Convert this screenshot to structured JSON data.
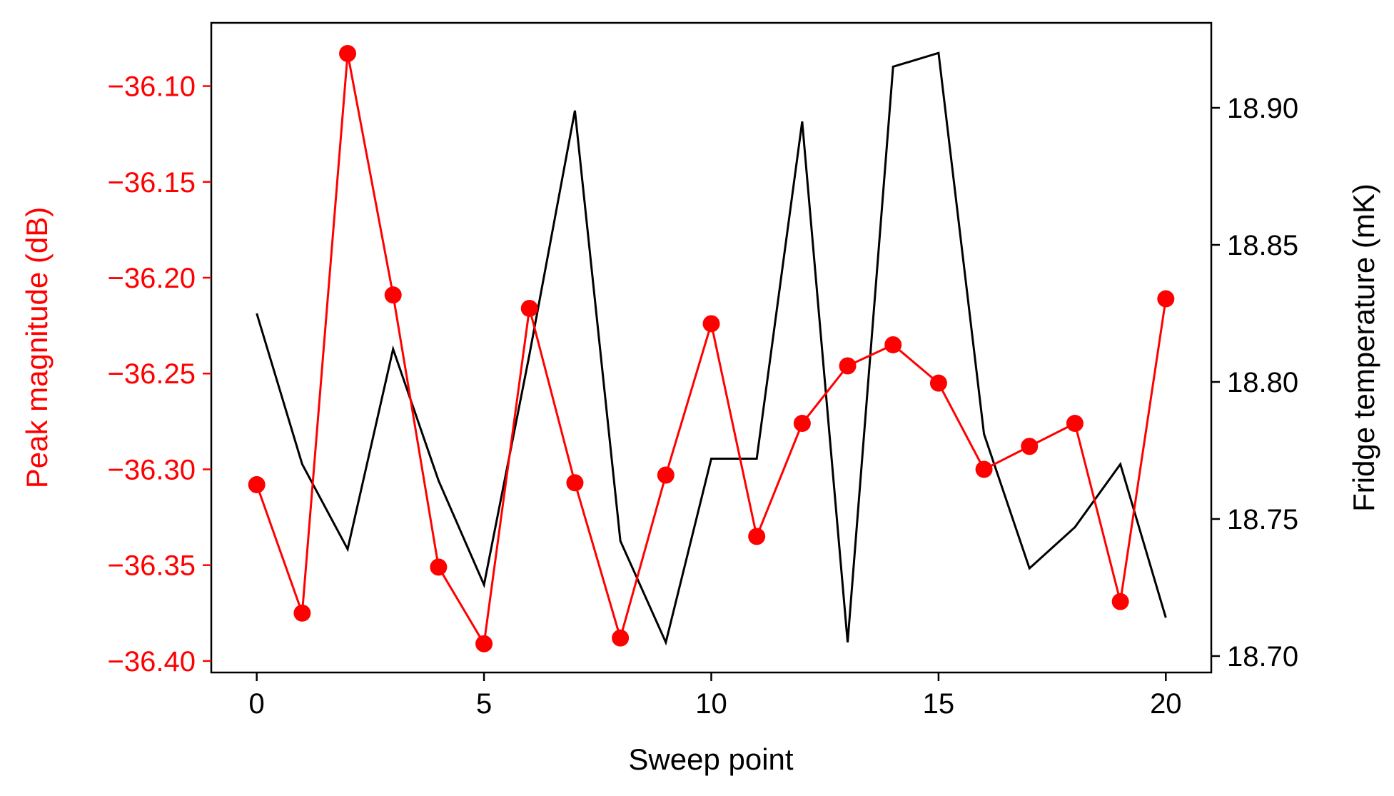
{
  "chart_data": {
    "type": "line",
    "xlabel": "Sweep point",
    "ylabel_left": "Peak magnitude (dB)",
    "ylabel_right": "Fridge temperature (mK)",
    "xlim": [
      -1,
      21
    ],
    "ylim_left": [
      -36.406,
      -36.067
    ],
    "ylim_right": [
      18.694,
      18.931
    ],
    "x_ticks": [
      0,
      5,
      10,
      15,
      20
    ],
    "x_tick_labels": [
      "0",
      "5",
      "10",
      "15",
      "20"
    ],
    "y_left_ticks": [
      -36.1,
      -36.15,
      -36.2,
      -36.25,
      -36.3,
      -36.35,
      -36.4
    ],
    "y_left_tick_labels": [
      "−36.10",
      "−36.15",
      "−36.20",
      "−36.25",
      "−36.30",
      "−36.35",
      "−36.40"
    ],
    "y_right_ticks": [
      18.7,
      18.75,
      18.8,
      18.85,
      18.9
    ],
    "y_right_tick_labels": [
      "18.70",
      "18.75",
      "18.80",
      "18.85",
      "18.90"
    ],
    "grid": false,
    "x": [
      0,
      1,
      2,
      3,
      4,
      5,
      6,
      7,
      8,
      9,
      10,
      11,
      12,
      13,
      14,
      15,
      16,
      17,
      18,
      19,
      20
    ],
    "series": [
      {
        "axis": "left",
        "color": "#ff0000",
        "marker": "circle",
        "values": [
          -36.308,
          -36.375,
          -36.083,
          -36.209,
          -36.351,
          -36.391,
          -36.216,
          -36.307,
          -36.388,
          -36.303,
          -36.224,
          -36.335,
          -36.276,
          -36.246,
          -36.235,
          -36.255,
          -36.3,
          -36.288,
          -36.276,
          -36.369,
          -36.211
        ]
      },
      {
        "axis": "right",
        "color": "#000000",
        "marker": "none",
        "values": [
          18.825,
          18.77,
          18.739,
          18.812,
          18.764,
          18.726,
          18.81,
          18.899,
          18.742,
          18.705,
          18.772,
          18.772,
          18.895,
          18.705,
          18.915,
          18.92,
          18.781,
          18.732,
          18.747,
          18.77,
          18.714
        ]
      }
    ]
  }
}
